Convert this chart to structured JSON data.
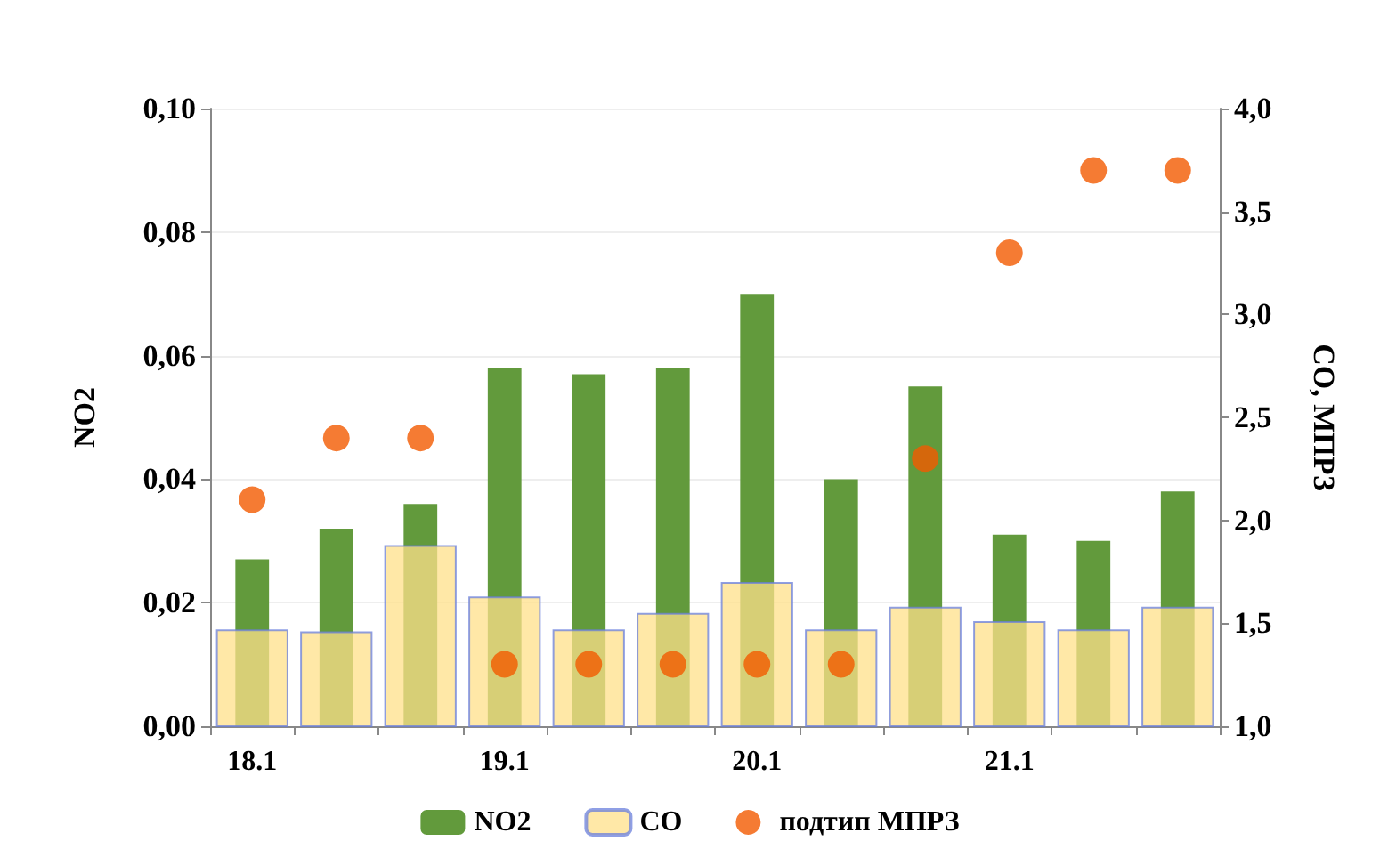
{
  "chart_data": {
    "type": "bar",
    "categories": [
      "18.1",
      null,
      null,
      "19.1",
      null,
      null,
      "20.1",
      null,
      null,
      "21.1",
      null,
      null
    ],
    "ylabel": "NO2",
    "y2label": "CO, МПРЗ",
    "series": [
      {
        "name": "NO2",
        "color": "#629a3c",
        "values": [
          0.027,
          0.032,
          0.036,
          0.058,
          0.057,
          0.058,
          0.07,
          0.04,
          0.055,
          0.031,
          0.03,
          0.038
        ]
      },
      {
        "name": "CO",
        "axis": "y2",
        "color": "#ffe08a",
        "values": [
          1.47,
          1.46,
          1.88,
          1.63,
          1.47,
          1.55,
          1.7,
          1.47,
          1.58,
          1.51,
          1.47,
          1.58
        ]
      },
      {
        "name": "подтип МПРЗ",
        "type": "scatter",
        "axis": "y2",
        "color": "#f25a00",
        "values": [
          2.1,
          2.4,
          2.4,
          1.3,
          1.3,
          1.3,
          1.3,
          1.3,
          2.3,
          3.3,
          3.7,
          3.7
        ]
      }
    ],
    "ylim": [
      0,
      0.1
    ],
    "yticks": [
      {
        "value": 0,
        "label": "0,00"
      },
      {
        "value": 0.02,
        "label": "0,02"
      },
      {
        "value": 0.04,
        "label": "0,04"
      },
      {
        "value": 0.06,
        "label": "0,06"
      },
      {
        "value": 0.08,
        "label": "0,08"
      },
      {
        "value": 0.1,
        "label": "0,10"
      }
    ],
    "y2lim": [
      1,
      4
    ],
    "y2ticks": [
      {
        "value": 1,
        "label": "1,0"
      },
      {
        "value": 1.5,
        "label": "1,5"
      },
      {
        "value": 2,
        "label": "2,0"
      },
      {
        "value": 2.5,
        "label": "2,5"
      },
      {
        "value": 3,
        "label": "3,0"
      },
      {
        "value": 3.5,
        "label": "3,5"
      },
      {
        "value": 4,
        "label": "4,0"
      }
    ],
    "grid": "y",
    "legend": "bottom",
    "marker": "circle"
  }
}
